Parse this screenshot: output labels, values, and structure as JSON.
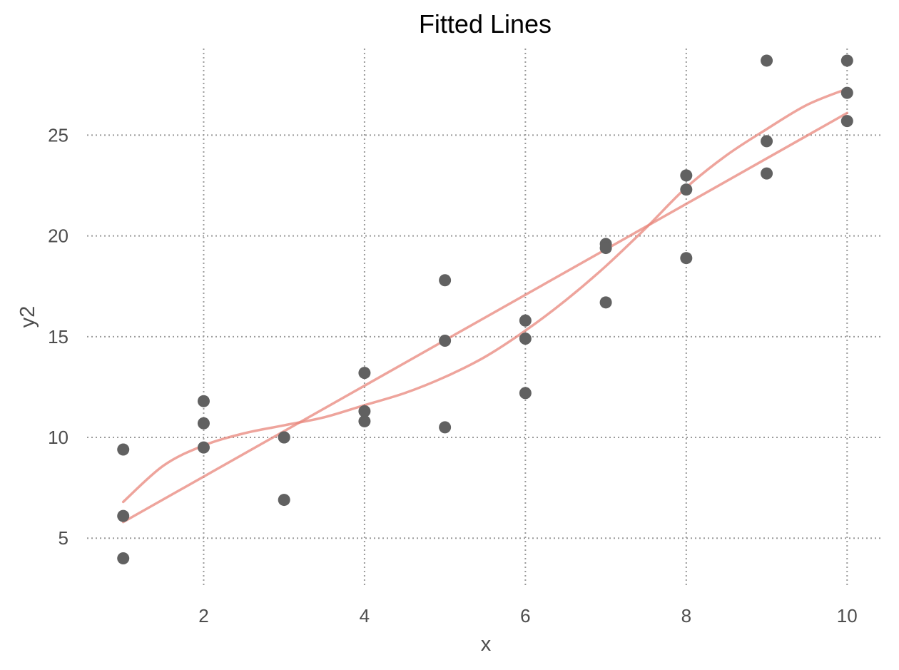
{
  "chart_data": {
    "type": "scatter",
    "title": "Fitted Lines",
    "xlabel": "x",
    "ylabel": "y2",
    "xlim": [
      0.55,
      10.45
    ],
    "ylim": [
      2.6,
      29.3
    ],
    "x_ticks": [
      2,
      4,
      6,
      8,
      10
    ],
    "y_ticks": [
      5,
      10,
      15,
      20,
      25
    ],
    "grid": true,
    "points": {
      "color": "#616161",
      "x": [
        1,
        1,
        1,
        2,
        2,
        2,
        3,
        3,
        3,
        4,
        4,
        4,
        5,
        5,
        5,
        6,
        6,
        6,
        7,
        7,
        7,
        8,
        8,
        8,
        9,
        9,
        9,
        10,
        10,
        10
      ],
      "y": [
        9.4,
        6.1,
        4.0,
        11.8,
        10.7,
        9.5,
        10.0,
        6.9,
        10.0,
        13.2,
        11.3,
        10.8,
        17.8,
        14.8,
        10.5,
        15.8,
        14.9,
        12.2,
        19.6,
        16.7,
        19.4,
        23.0,
        22.3,
        18.9,
        28.7,
        24.7,
        23.1,
        28.7,
        27.1,
        25.7
      ]
    },
    "lines": [
      {
        "kind": "linear",
        "color": "#e8867b",
        "x": [
          1,
          10
        ],
        "y": [
          5.8,
          26.1
        ]
      },
      {
        "kind": "smooth",
        "color": "#e8867b",
        "x": [
          1,
          1.5,
          2,
          2.5,
          3,
          3.5,
          4,
          4.5,
          5,
          5.5,
          6,
          6.5,
          7,
          7.5,
          8,
          8.5,
          9,
          9.5,
          10
        ],
        "y": [
          6.8,
          8.6,
          9.6,
          10.2,
          10.6,
          11.0,
          11.6,
          12.2,
          13.0,
          14.0,
          15.3,
          16.8,
          18.5,
          20.4,
          22.4,
          24.0,
          25.3,
          26.5,
          27.3
        ]
      }
    ]
  }
}
